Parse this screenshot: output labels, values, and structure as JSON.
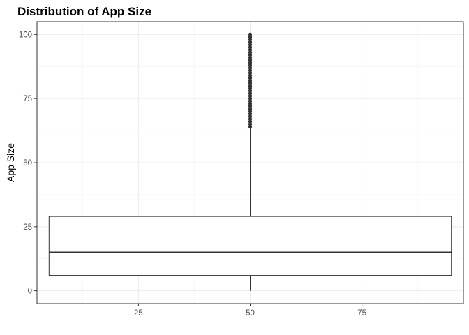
{
  "chart_data": {
    "type": "box",
    "title": "Distribution of App Size",
    "xlabel": "",
    "ylabel": "App Size",
    "xlim": [
      2.3,
      97.7
    ],
    "ylim": [
      -5,
      105
    ],
    "x_ticks": [
      25,
      50,
      75
    ],
    "y_ticks": [
      0,
      25,
      50,
      75,
      100
    ],
    "grid": true,
    "box": {
      "x_center": 50,
      "x_min": 5,
      "x_max": 95,
      "whisker_low": 0,
      "q1": 6,
      "median": 15,
      "q3": 29,
      "whisker_high": 64
    },
    "outliers": [
      64,
      65,
      66,
      67,
      68,
      69,
      70,
      71,
      72,
      73,
      74,
      75,
      76,
      77,
      78,
      79,
      80,
      81,
      82,
      83,
      84,
      85,
      86,
      87,
      88,
      89,
      90,
      91,
      92,
      93,
      94,
      95,
      96,
      97,
      98,
      99,
      100
    ]
  }
}
